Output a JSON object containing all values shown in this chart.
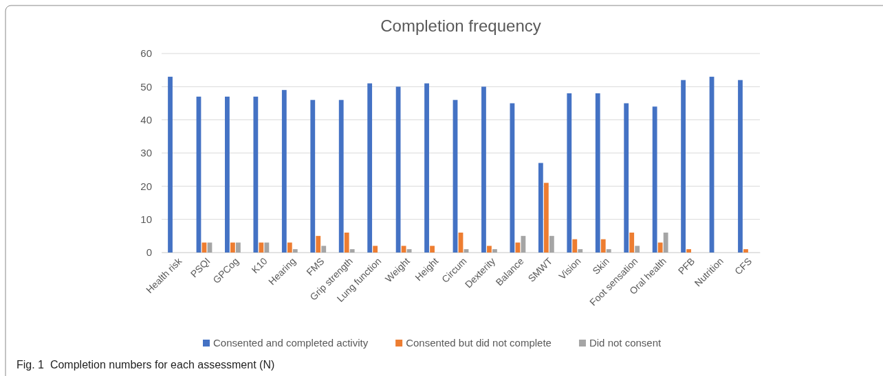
{
  "chart_data": {
    "type": "bar",
    "title": "Completion frequency",
    "categories": [
      "Health risk",
      "PSQI",
      "GPCog",
      "K10",
      "Hearing",
      "FMS",
      "Grip strength",
      "Lung function",
      "Weight",
      "Height",
      "Circum",
      "Dexterity",
      "Balance",
      "SMWT",
      "Vision",
      "Skin",
      "Foot sensation",
      "Oral health",
      "PFB",
      "Nutrition",
      "CFS"
    ],
    "series": [
      {
        "name": "Consented and completed activity",
        "color": "#4472c4",
        "values": [
          53,
          47,
          47,
          47,
          49,
          46,
          46,
          51,
          50,
          51,
          46,
          50,
          45,
          27,
          48,
          48,
          45,
          44,
          52,
          53,
          52
        ]
      },
      {
        "name": "Consented but did not complete",
        "color": "#ed7d31",
        "values": [
          0,
          3,
          3,
          3,
          3,
          5,
          6,
          2,
          2,
          2,
          6,
          2,
          3,
          21,
          4,
          4,
          6,
          3,
          1,
          0,
          1
        ]
      },
      {
        "name": "Did not consent",
        "color": "#a5a5a5",
        "values": [
          0,
          3,
          3,
          3,
          1,
          2,
          1,
          0,
          1,
          0,
          1,
          1,
          5,
          5,
          1,
          1,
          2,
          6,
          0,
          0,
          0
        ]
      }
    ],
    "ylim": [
      0,
      60
    ],
    "yticks": [
      0,
      10,
      20,
      30,
      40,
      50,
      60
    ],
    "grid": "y",
    "legend": "bottom",
    "annotations": [
      "Fig. 1  Completion numbers for each assessment (N)"
    ]
  }
}
